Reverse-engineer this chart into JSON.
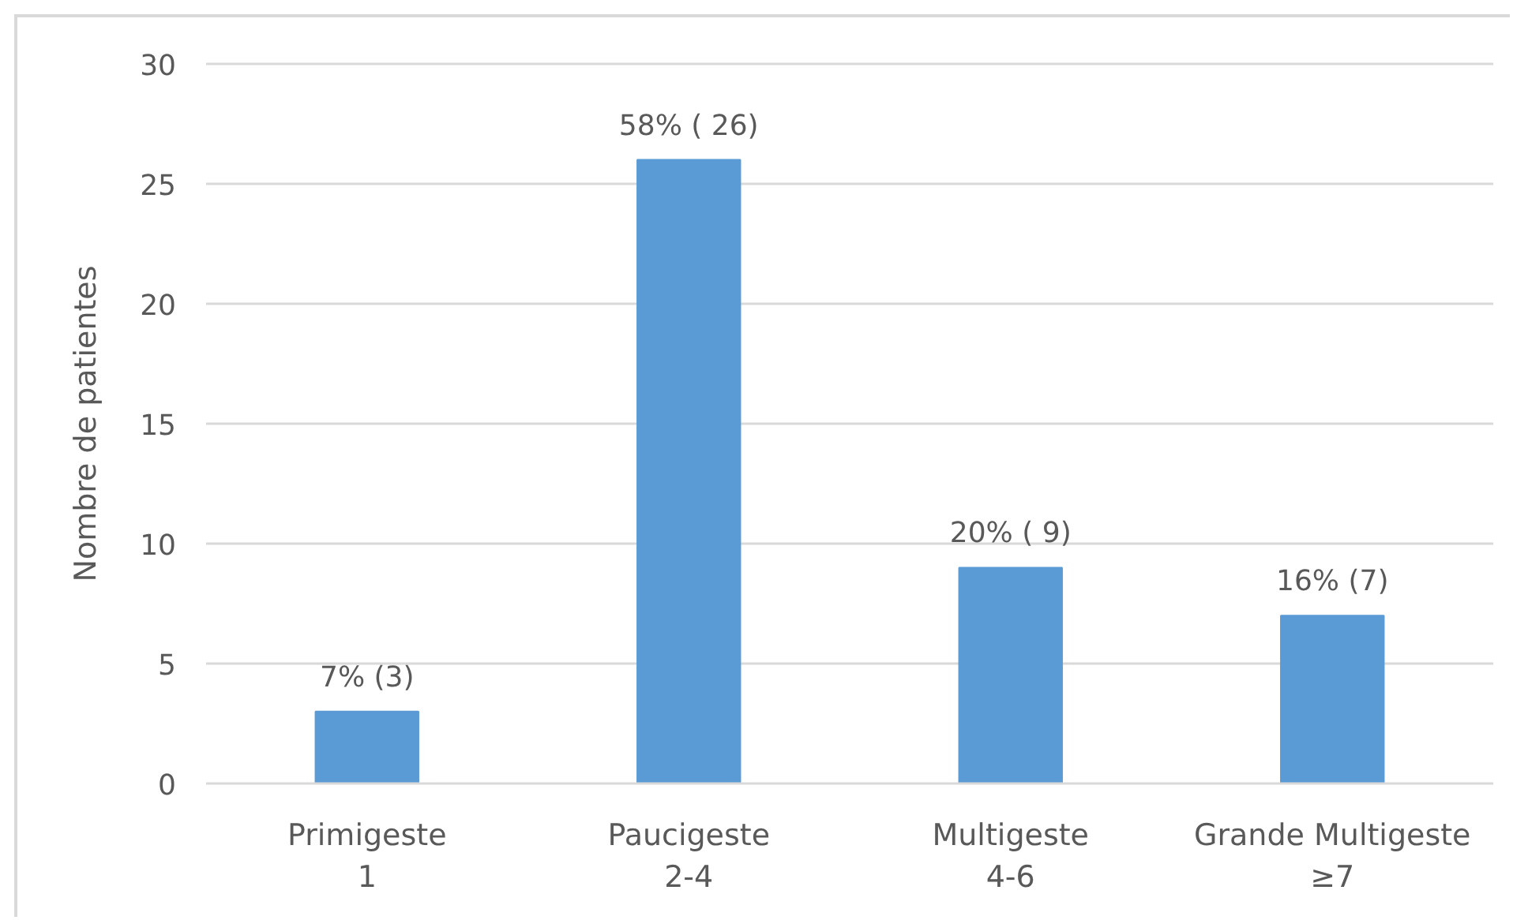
{
  "chart_data": {
    "type": "bar",
    "ylabel": "Nombre de patientes",
    "categories": [
      "Primigeste\n1",
      "Paucigeste\n2-4",
      "Multigeste\n4-6",
      "Grande Multigeste\n≥7"
    ],
    "values": [
      3,
      26,
      9,
      7
    ],
    "value_labels": [
      "7% (3)",
      "58% ( 26)",
      "20% ( 9)",
      "16% (7)"
    ],
    "color": "#5b9bd5",
    "ylim": [
      0,
      30
    ],
    "yticks": [
      0,
      5,
      10,
      15,
      20,
      25,
      30
    ],
    "grid": "y"
  }
}
